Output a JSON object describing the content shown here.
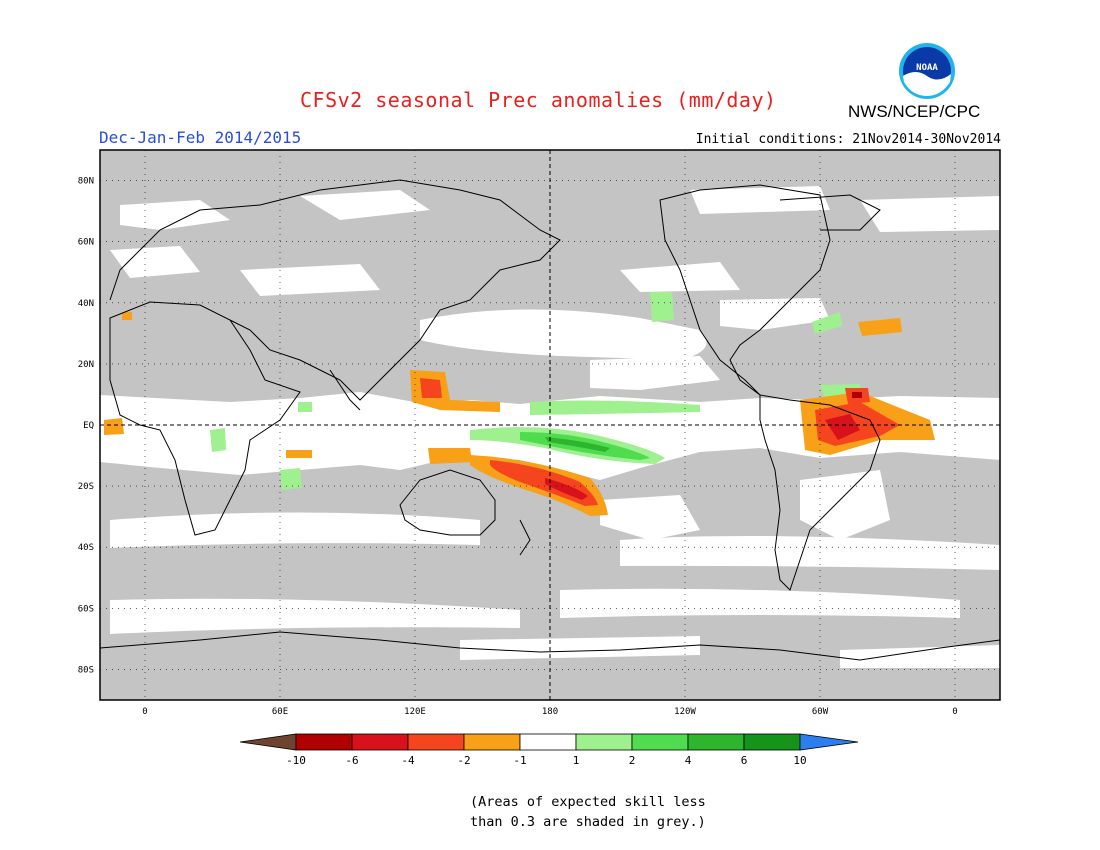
{
  "header": {
    "title": "CFSv2 seasonal Prec anomalies (mm/day)",
    "season": "Dec-Jan-Feb 2014/2015",
    "initial_conditions": "Initial conditions: 21Nov2014-30Nov2014",
    "agency": "NWS/NCEP/CPC",
    "logo_text": "NOAA"
  },
  "map": {
    "lat_labels": [
      "80N",
      "60N",
      "40N",
      "20N",
      "EQ",
      "20S",
      "40S",
      "60S",
      "80S"
    ],
    "lat_values": [
      80,
      60,
      40,
      20,
      0,
      -20,
      -40,
      -60,
      -80
    ],
    "lon_labels": [
      "0",
      "60E",
      "120E",
      "180",
      "120W",
      "60W",
      "0"
    ],
    "lon_values": [
      0,
      60,
      120,
      180,
      240,
      300,
      360
    ],
    "lon_range": [
      -20,
      380
    ],
    "lat_range": [
      -90,
      90
    ]
  },
  "legend": {
    "tick_labels": [
      "-10",
      "-6",
      "-4",
      "-2",
      "-1",
      "1",
      "2",
      "4",
      "6",
      "10"
    ],
    "colors": [
      "#6e4330",
      "#b00000",
      "#d8121c",
      "#f5451e",
      "#f8a017",
      "#ffffff",
      "#9ff08f",
      "#4fdc4f",
      "#2db52d",
      "#16931b",
      "#2a7ef0"
    ]
  },
  "note": {
    "line1": "(Areas of expected skill less",
    "line2": "than 0.3 are shaded in grey.)"
  },
  "colors": {
    "grey_mask": "#c4c4c4",
    "title_red": "#e8201e",
    "season_blue": "#2a4de0"
  }
}
